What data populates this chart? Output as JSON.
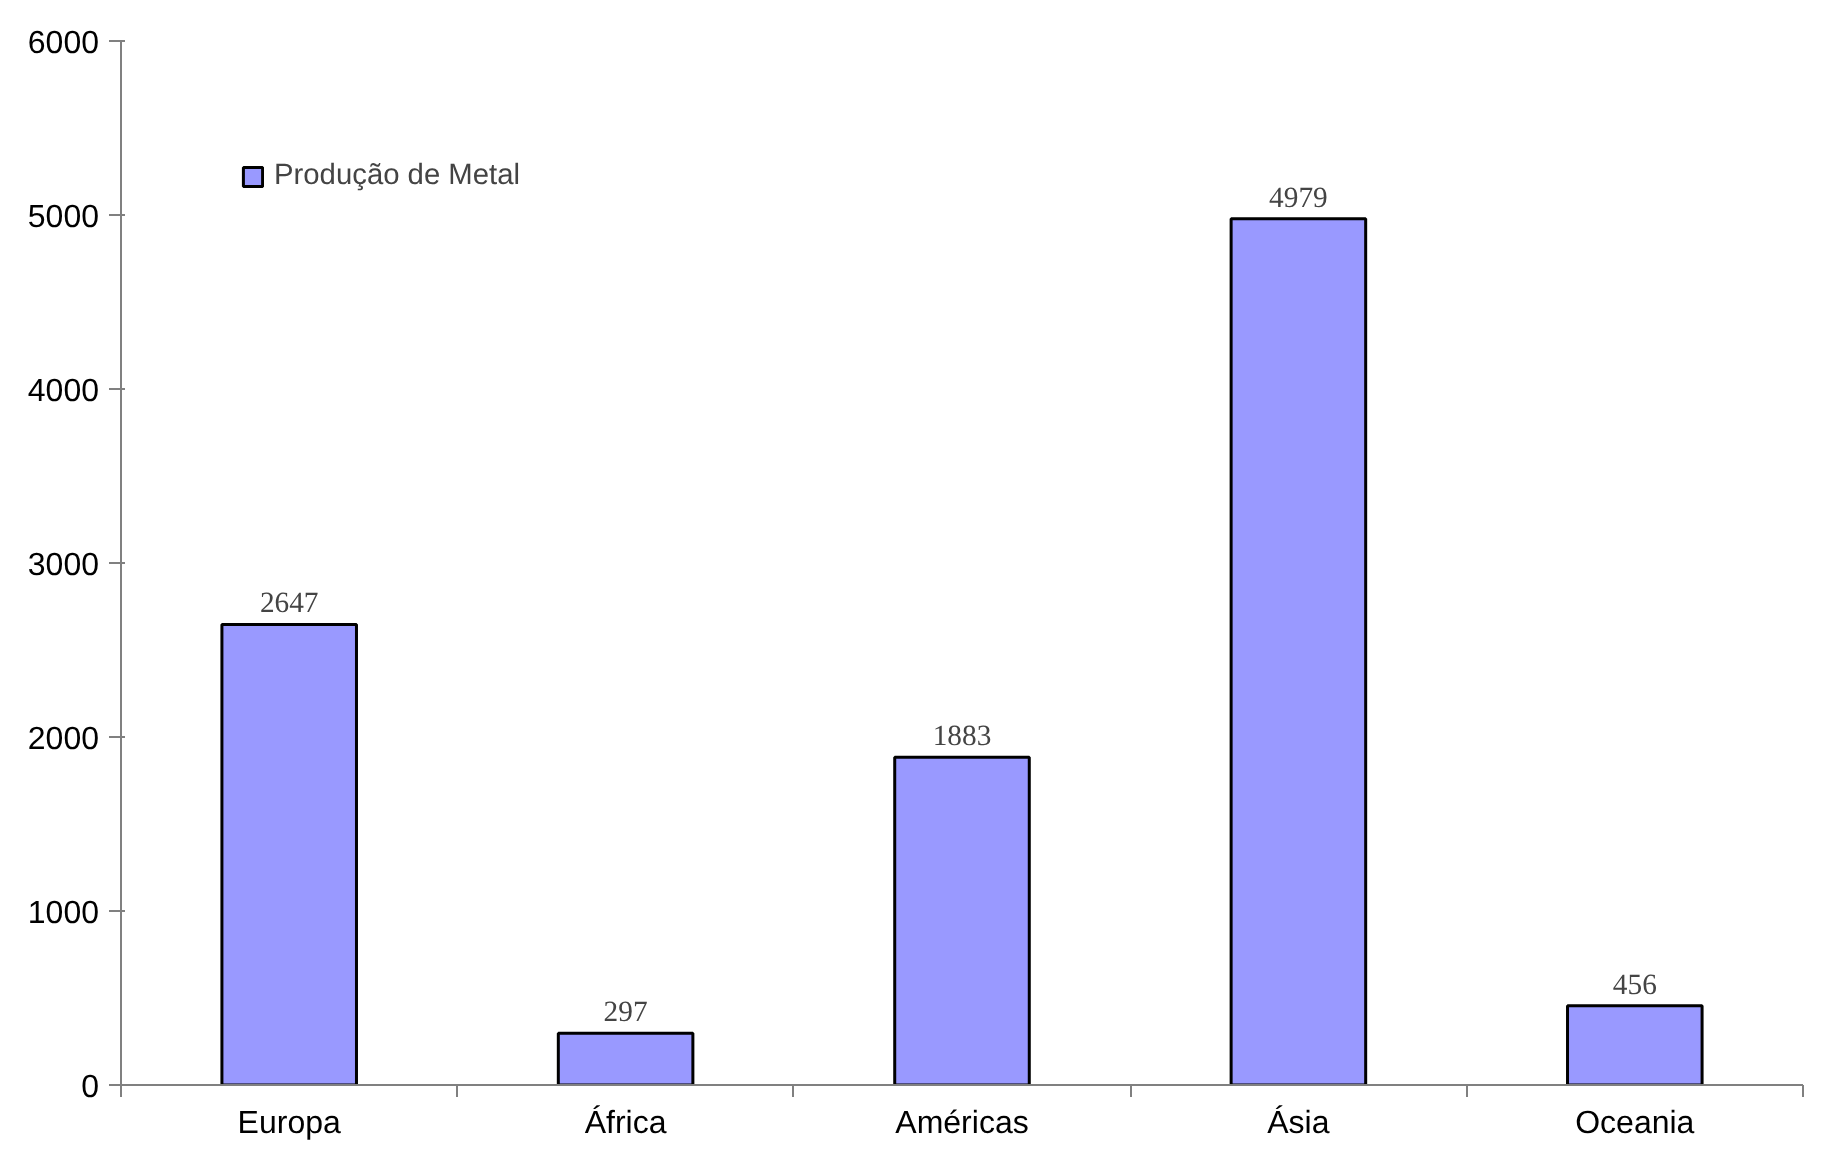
{
  "chart_data": {
    "type": "bar",
    "categories": [
      "Europa",
      "África",
      "Américas",
      "Ásia",
      "Oceania"
    ],
    "series": [
      {
        "name": "Produção de Metal",
        "color": "#9999ff",
        "values": [
          2647,
          297,
          1883,
          4979,
          456
        ]
      }
    ],
    "ylim": [
      0,
      6000
    ],
    "yticks": [
      0,
      1000,
      2000,
      3000,
      4000,
      5000,
      6000
    ],
    "data_labels": true,
    "grid": false,
    "legend": "top left"
  }
}
